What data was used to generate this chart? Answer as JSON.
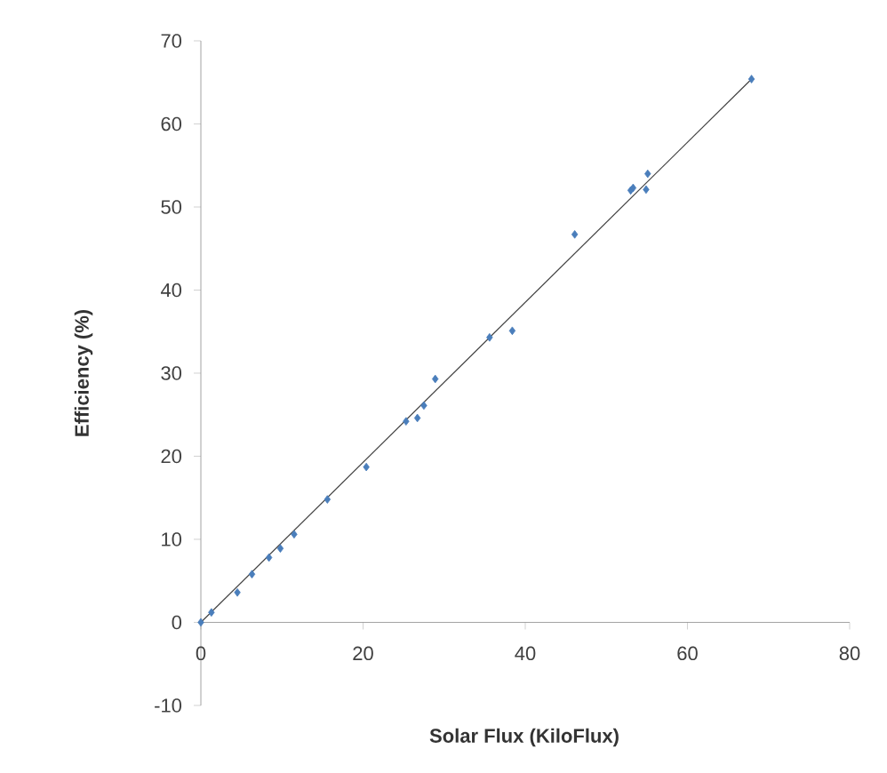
{
  "chart_data": {
    "type": "scatter",
    "xlabel": "Solar Flux (KiloFlux)",
    "ylabel": "Efficiency (%)",
    "xlim": [
      0,
      80
    ],
    "ylim": [
      -10,
      70
    ],
    "xticks": [
      0,
      20,
      40,
      60,
      80
    ],
    "yticks": [
      -10,
      0,
      10,
      20,
      30,
      40,
      50,
      60,
      70
    ],
    "grid": false,
    "marker": "diamond",
    "series": [
      {
        "color": "#4a7ebb",
        "x": [
          0,
          1.3,
          4.5,
          6.3,
          8.4,
          9.8,
          11.5,
          15.6,
          20.4,
          25.3,
          26.7,
          27.5,
          28.9,
          35.6,
          38.4,
          46.1,
          53.0,
          53.3,
          54.9,
          55.1,
          67.9
        ],
        "values": [
          0,
          1.2,
          3.6,
          5.8,
          7.8,
          8.9,
          10.6,
          14.8,
          18.7,
          24.2,
          24.6,
          26.1,
          29.3,
          34.3,
          35.1,
          46.7,
          52.0,
          52.3,
          52.1,
          54.0,
          65.4
        ]
      },
      {
        "type": "line",
        "color": "#404040",
        "marker": "none",
        "line_style": "solid",
        "x": [
          0,
          67.9
        ],
        "values": [
          0,
          65.4
        ]
      }
    ]
  }
}
